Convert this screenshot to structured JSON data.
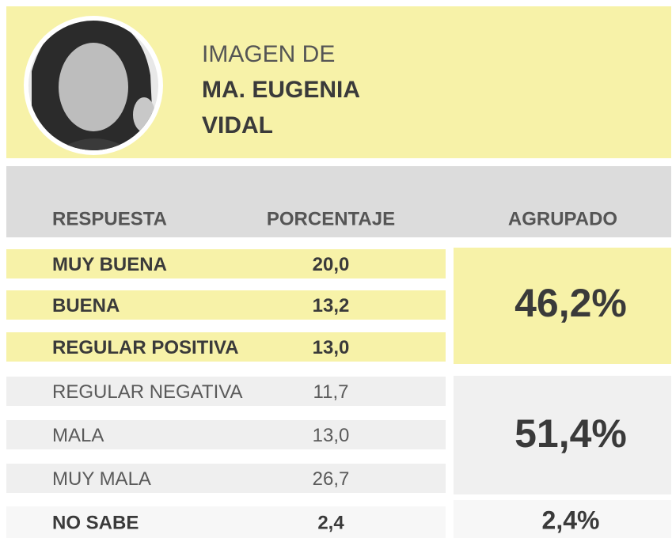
{
  "header": {
    "line1": "IMAGEN DE",
    "line2": "MA. EUGENIA",
    "line3": "VIDAL"
  },
  "table": {
    "columns": [
      "RESPUESTA",
      "PORCENTAJE",
      "AGRUPADO"
    ],
    "rows": [
      [
        "MUY BUENA",
        "20,0"
      ],
      [
        "BUENA",
        "13,2"
      ],
      [
        "REGULAR POSITIVA",
        "13,0"
      ],
      [
        "REGULAR NEGATIVA",
        "11,7"
      ],
      [
        "MALA",
        "13,0"
      ],
      [
        "MUY MALA",
        "26,7"
      ],
      [
        "NO SABE",
        "2,4"
      ]
    ],
    "groups": [
      "46,2%",
      "51,4%",
      "2,4%"
    ]
  }
}
